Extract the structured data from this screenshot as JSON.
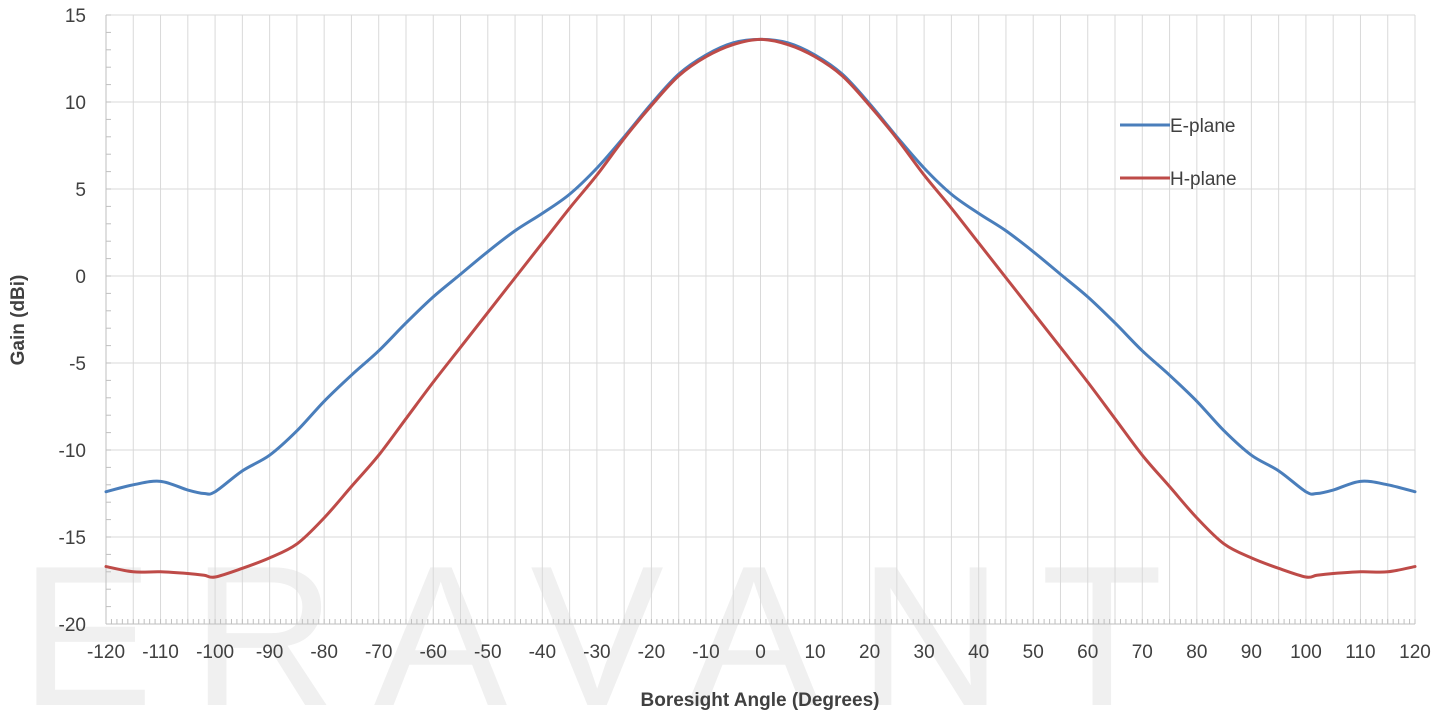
{
  "chart_data": {
    "type": "line",
    "title": "",
    "watermark": "ERAVANT",
    "xlabel": "Boresight Angle (Degrees)",
    "ylabel": "Gain (dBi)",
    "xlim": [
      -120,
      120
    ],
    "ylim": [
      -20,
      15
    ],
    "xticks": [
      -120,
      -110,
      -100,
      -90,
      -80,
      -70,
      -60,
      -50,
      -40,
      -30,
      -20,
      -10,
      0,
      10,
      20,
      30,
      40,
      50,
      60,
      70,
      80,
      90,
      100,
      110,
      120
    ],
    "yticks": [
      15,
      10,
      5,
      0,
      -5,
      -10,
      -15,
      -20
    ],
    "grid": true,
    "legend_position": "right",
    "x": [
      -120,
      -115,
      -110,
      -105,
      -102,
      -100,
      -95,
      -90,
      -85,
      -80,
      -75,
      -70,
      -65,
      -60,
      -55,
      -50,
      -45,
      -40,
      -35,
      -30,
      -25,
      -20,
      -15,
      -10,
      -5,
      0,
      5,
      10,
      15,
      20,
      25,
      30,
      35,
      40,
      45,
      50,
      55,
      60,
      65,
      70,
      75,
      80,
      85,
      90,
      95,
      100,
      102,
      105,
      110,
      115,
      120
    ],
    "series": [
      {
        "name": "E-plane",
        "color": "#4a7ebb",
        "values": [
          -12.4,
          -12.0,
          -11.8,
          -12.3,
          -12.5,
          -12.4,
          -11.2,
          -10.3,
          -8.9,
          -7.2,
          -5.7,
          -4.3,
          -2.7,
          -1.2,
          0.1,
          1.4,
          2.6,
          3.6,
          4.7,
          6.2,
          8.0,
          9.9,
          11.6,
          12.7,
          13.4,
          13.6,
          13.4,
          12.7,
          11.6,
          9.9,
          8.0,
          6.2,
          4.7,
          3.6,
          2.6,
          1.4,
          0.1,
          -1.2,
          -2.7,
          -4.3,
          -5.7,
          -7.2,
          -8.9,
          -10.3,
          -11.2,
          -12.4,
          -12.5,
          -12.3,
          -11.8,
          -12.0,
          -12.4
        ]
      },
      {
        "name": "H-plane",
        "color": "#be4b48",
        "values": [
          -16.7,
          -17.0,
          -17.0,
          -17.1,
          -17.2,
          -17.3,
          -16.8,
          -16.2,
          -15.4,
          -13.9,
          -12.1,
          -10.3,
          -8.2,
          -6.1,
          -4.1,
          -2.1,
          -0.1,
          1.9,
          3.9,
          5.8,
          7.9,
          9.8,
          11.5,
          12.6,
          13.3,
          13.6,
          13.3,
          12.6,
          11.5,
          9.8,
          7.9,
          5.8,
          3.9,
          1.9,
          -0.1,
          -2.1,
          -4.1,
          -6.1,
          -8.2,
          -10.3,
          -12.1,
          -13.9,
          -15.4,
          -16.2,
          -16.8,
          -17.3,
          -17.2,
          -17.1,
          -17.0,
          -17.0,
          -16.7
        ]
      }
    ]
  }
}
